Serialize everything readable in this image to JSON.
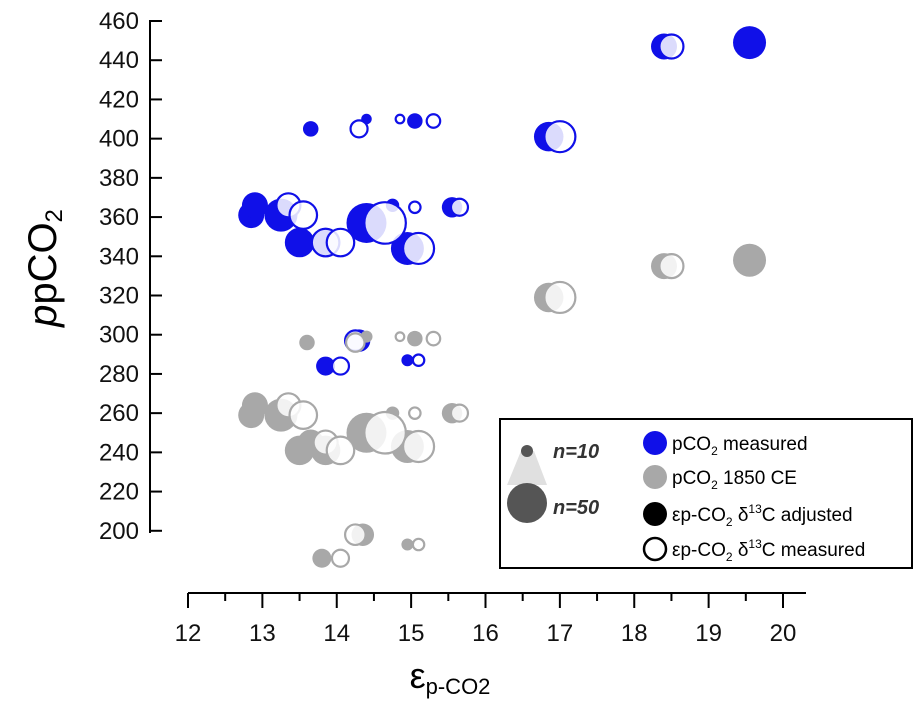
{
  "chart_data": {
    "type": "scatter",
    "title": "",
    "ylabel": {
      "main": "pCO",
      "sub": "2"
    },
    "xlabel": {
      "main": "ε",
      "sub": "p-CO2"
    },
    "xlim": [
      12,
      20
    ],
    "ylim": [
      180,
      460
    ],
    "x_ticks": [
      12,
      13,
      14,
      15,
      16,
      17,
      18,
      19,
      20
    ],
    "y_ticks": [
      200,
      220,
      240,
      260,
      280,
      300,
      320,
      340,
      360,
      380,
      400,
      420,
      440,
      460
    ],
    "grid": false,
    "legend_position": "bottom-right",
    "colors": {
      "measured": "#1010e8",
      "ce1850": "#a8a8a8",
      "size_key": "#555555"
    },
    "size_legend": {
      "small": "n=10",
      "large": "n=50"
    },
    "legend": [
      {
        "key": "measured",
        "pre": "pCO",
        "sub": "2",
        "post": " measured"
      },
      {
        "key": "ce1850",
        "pre": "pCO",
        "sub": "2",
        "post": " 1850 CE"
      },
      {
        "key": "adjusted",
        "pre": "εp-CO",
        "sub": "2",
        "mid": " δ",
        "sup": "13",
        "post": "C adjusted"
      },
      {
        "key": "measured_d13c",
        "pre": "εp-CO",
        "sub": "2",
        "mid": " δ",
        "sup": "13",
        "post": "C measured"
      }
    ],
    "series": [
      {
        "name": "pCO2 measured",
        "color_key": "measured",
        "adjusted": [
          {
            "x": 12.85,
            "y": 361,
            "n": 30
          },
          {
            "x": 12.9,
            "y": 366,
            "n": 30
          },
          {
            "x": 13.25,
            "y": 361,
            "n": 40
          },
          {
            "x": 13.5,
            "y": 347,
            "n": 35
          },
          {
            "x": 13.65,
            "y": 405,
            "n": 15
          },
          {
            "x": 13.85,
            "y": 347,
            "n": 35
          },
          {
            "x": 13.85,
            "y": 284,
            "n": 20
          },
          {
            "x": 14.3,
            "y": 297,
            "n": 25
          },
          {
            "x": 14.4,
            "y": 357,
            "n": 50
          },
          {
            "x": 14.4,
            "y": 410,
            "n": 8
          },
          {
            "x": 14.75,
            "y": 366,
            "n": 12
          },
          {
            "x": 14.95,
            "y": 344,
            "n": 40
          },
          {
            "x": 14.95,
            "y": 287,
            "n": 10
          },
          {
            "x": 15.05,
            "y": 409,
            "n": 15
          },
          {
            "x": 15.55,
            "y": 365,
            "n": 22
          },
          {
            "x": 16.85,
            "y": 401,
            "n": 35
          },
          {
            "x": 18.4,
            "y": 447,
            "n": 30
          },
          {
            "x": 19.55,
            "y": 449,
            "n": 40
          }
        ],
        "measured": [
          {
            "x": 13.35,
            "y": 366,
            "n": 30
          },
          {
            "x": 13.55,
            "y": 361,
            "n": 35
          },
          {
            "x": 13.85,
            "y": 347,
            "n": 35
          },
          {
            "x": 14.05,
            "y": 347,
            "n": 35
          },
          {
            "x": 14.05,
            "y": 284,
            "n": 20
          },
          {
            "x": 14.25,
            "y": 297,
            "n": 25
          },
          {
            "x": 14.3,
            "y": 405,
            "n": 20
          },
          {
            "x": 14.65,
            "y": 357,
            "n": 55
          },
          {
            "x": 14.85,
            "y": 410,
            "n": 8
          },
          {
            "x": 15.05,
            "y": 365,
            "n": 12
          },
          {
            "x": 15.1,
            "y": 344,
            "n": 40
          },
          {
            "x": 15.1,
            "y": 287,
            "n": 12
          },
          {
            "x": 15.3,
            "y": 409,
            "n": 15
          },
          {
            "x": 15.65,
            "y": 365,
            "n": 20
          },
          {
            "x": 17.0,
            "y": 401,
            "n": 40
          },
          {
            "x": 18.5,
            "y": 447,
            "n": 30
          }
        ]
      },
      {
        "name": "pCO2 1850 CE",
        "color_key": "ce1850",
        "adjusted": [
          {
            "x": 12.85,
            "y": 259,
            "n": 30
          },
          {
            "x": 12.9,
            "y": 264,
            "n": 30
          },
          {
            "x": 13.25,
            "y": 259,
            "n": 40
          },
          {
            "x": 13.5,
            "y": 241,
            "n": 35
          },
          {
            "x": 13.6,
            "y": 296,
            "n": 15
          },
          {
            "x": 13.65,
            "y": 245,
            "n": 30
          },
          {
            "x": 13.8,
            "y": 186,
            "n": 20
          },
          {
            "x": 13.85,
            "y": 241,
            "n": 35
          },
          {
            "x": 14.35,
            "y": 198,
            "n": 25
          },
          {
            "x": 14.4,
            "y": 250,
            "n": 50
          },
          {
            "x": 14.4,
            "y": 299,
            "n": 10
          },
          {
            "x": 14.75,
            "y": 260,
            "n": 12
          },
          {
            "x": 14.95,
            "y": 243,
            "n": 40
          },
          {
            "x": 14.95,
            "y": 193,
            "n": 10
          },
          {
            "x": 15.05,
            "y": 298,
            "n": 15
          },
          {
            "x": 15.55,
            "y": 260,
            "n": 22
          },
          {
            "x": 16.85,
            "y": 319,
            "n": 35
          },
          {
            "x": 18.4,
            "y": 335,
            "n": 30
          },
          {
            "x": 19.55,
            "y": 338,
            "n": 40
          }
        ],
        "measured": [
          {
            "x": 13.35,
            "y": 264,
            "n": 30
          },
          {
            "x": 13.55,
            "y": 259,
            "n": 35
          },
          {
            "x": 13.85,
            "y": 245,
            "n": 30
          },
          {
            "x": 14.05,
            "y": 241,
            "n": 35
          },
          {
            "x": 14.05,
            "y": 186,
            "n": 20
          },
          {
            "x": 14.25,
            "y": 198,
            "n": 25
          },
          {
            "x": 14.25,
            "y": 296,
            "n": 22
          },
          {
            "x": 14.65,
            "y": 250,
            "n": 55
          },
          {
            "x": 14.85,
            "y": 299,
            "n": 8
          },
          {
            "x": 15.05,
            "y": 260,
            "n": 12
          },
          {
            "x": 15.1,
            "y": 243,
            "n": 40
          },
          {
            "x": 15.1,
            "y": 193,
            "n": 12
          },
          {
            "x": 15.3,
            "y": 298,
            "n": 15
          },
          {
            "x": 15.65,
            "y": 260,
            "n": 20
          },
          {
            "x": 17.0,
            "y": 319,
            "n": 40
          },
          {
            "x": 18.5,
            "y": 335,
            "n": 30
          }
        ]
      }
    ]
  }
}
